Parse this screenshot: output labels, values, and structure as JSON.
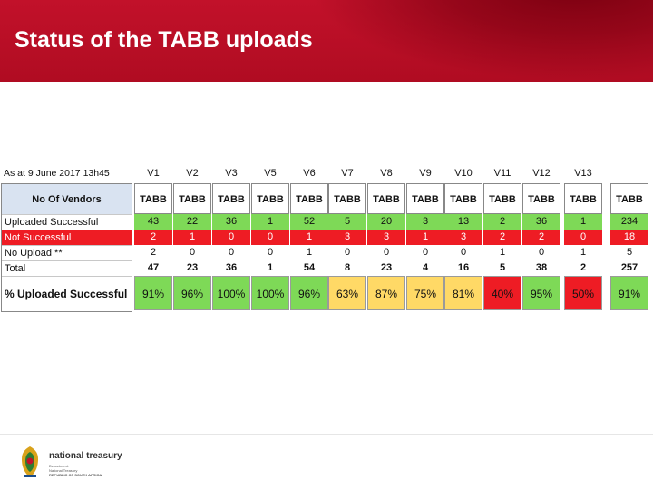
{
  "header": {
    "title": "Status of the TABB uploads"
  },
  "sheet": {
    "as_at": "As at  9 June 2017 13h45",
    "vendors_label": "No Of Vendors",
    "row_labels": [
      "Uploaded Successful",
      "Not Successful",
      "No Upload **",
      "Total"
    ],
    "pct_label": "% Uploaded Successful",
    "columns": [
      {
        "version": "V1",
        "head": "TABB",
        "uploaded": "43",
        "not_successful": "2",
        "no_upload": "2",
        "total": "47",
        "pct": "91%",
        "pct_color": "green"
      },
      {
        "version": "V2",
        "head": "TABB",
        "uploaded": "22",
        "not_successful": "1",
        "no_upload": "0",
        "total": "23",
        "pct": "96%",
        "pct_color": "green"
      },
      {
        "version": "V3",
        "head": "TABB",
        "uploaded": "36",
        "not_successful": "0",
        "no_upload": "0",
        "total": "36",
        "pct": "100%",
        "pct_color": "green"
      },
      {
        "version": "V5",
        "head": "TABB",
        "uploaded": "1",
        "not_successful": "0",
        "no_upload": "0",
        "total": "1",
        "pct": "100%",
        "pct_color": "green"
      },
      {
        "version": "V6",
        "head": "TABB",
        "uploaded": "52",
        "not_successful": "1",
        "no_upload": "1",
        "total": "54",
        "pct": "96%",
        "pct_color": "green"
      },
      {
        "version": "V7",
        "head": "TABB",
        "uploaded": "5",
        "not_successful": "3",
        "no_upload": "0",
        "total": "8",
        "pct": "63%",
        "pct_color": "yellow"
      },
      {
        "version": "V8",
        "head": "TABB",
        "uploaded": "20",
        "not_successful": "3",
        "no_upload": "0",
        "total": "23",
        "pct": "87%",
        "pct_color": "yellow"
      },
      {
        "version": "V9",
        "head": "TABB",
        "uploaded": "3",
        "not_successful": "1",
        "no_upload": "0",
        "total": "4",
        "pct": "75%",
        "pct_color": "yellow"
      },
      {
        "version": "V10",
        "head": "TABB",
        "uploaded": "13",
        "not_successful": "3",
        "no_upload": "0",
        "total": "16",
        "pct": "81%",
        "pct_color": "yellow"
      },
      {
        "version": "V11",
        "head": "TABB",
        "uploaded": "2",
        "not_successful": "2",
        "no_upload": "1",
        "total": "5",
        "pct": "40%",
        "pct_color": "red"
      },
      {
        "version": "V12",
        "head": "TABB",
        "uploaded": "36",
        "not_successful": "2",
        "no_upload": "0",
        "total": "38",
        "pct": "95%",
        "pct_color": "green"
      },
      {
        "version": "V13",
        "head": "TABB",
        "uploaded": "1",
        "not_successful": "0",
        "no_upload": "1",
        "total": "2",
        "pct": "50%",
        "pct_color": "red"
      },
      {
        "version": "",
        "head": "TABB",
        "uploaded": "234",
        "not_successful": "18",
        "no_upload": "5",
        "total": "257",
        "pct": "91%",
        "pct_color": "green"
      }
    ]
  },
  "footer": {
    "org_name": "national treasury",
    "org_sub": [
      "Department:",
      "National Treasury",
      "REPUBLIC OF SOUTH AFRICA"
    ]
  },
  "colors": {
    "brand_red": "#b00c22",
    "green": "#7ed957",
    "yellow": "#ffd966",
    "red": "#ee1c24"
  }
}
